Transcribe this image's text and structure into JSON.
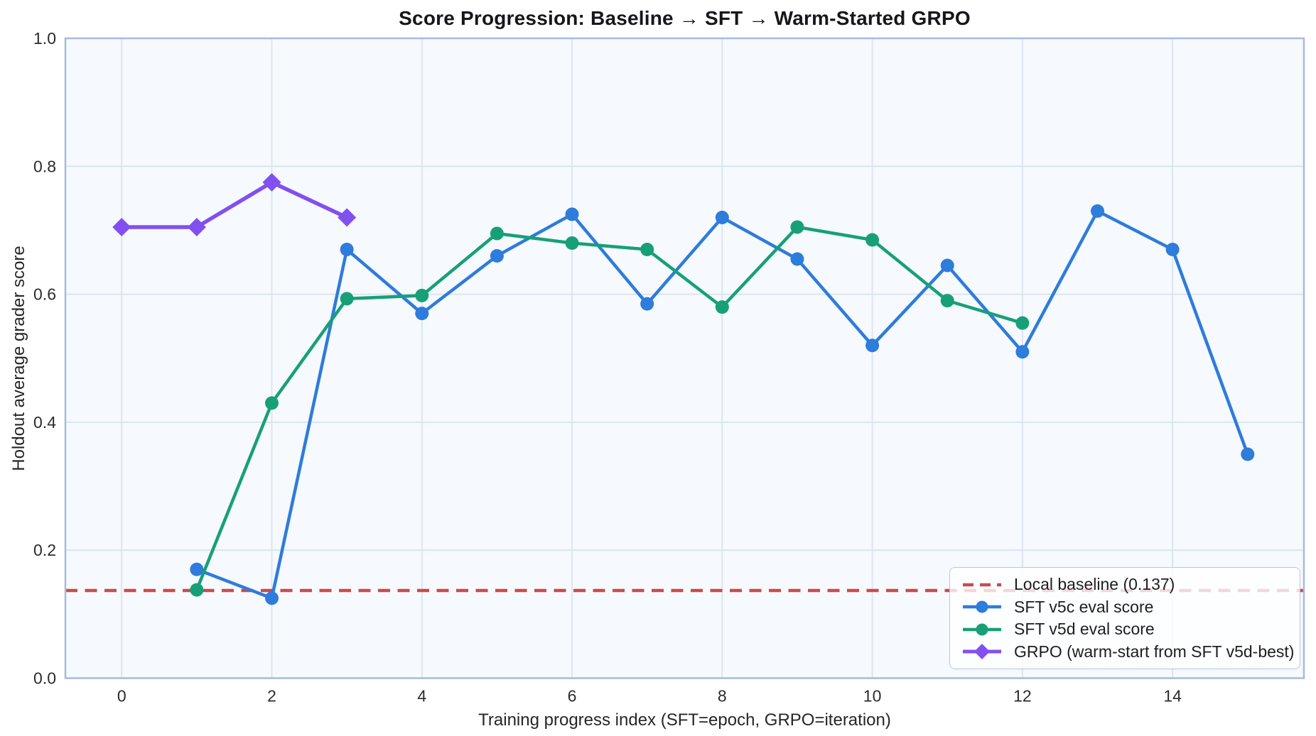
{
  "chart_data": {
    "type": "line",
    "title": "Score Progression: Baseline → SFT → Warm-Started GRPO",
    "xlabel": "Training progress index (SFT=epoch, GRPO=iteration)",
    "ylabel": "Holdout average grader score",
    "xlim": [
      -0.75,
      15.75
    ],
    "ylim": [
      0.0,
      1.0
    ],
    "x_ticks": [
      0,
      2,
      4,
      6,
      8,
      10,
      12,
      14
    ],
    "y_ticks": [
      "0.0",
      "0.2",
      "0.4",
      "0.6",
      "0.8",
      "1.0"
    ],
    "grid": true,
    "legend_position": "lower right",
    "colors": {
      "axes_background": "#f6f9fd",
      "gridline": "#d9e3f1",
      "spine": "#a8bbdc",
      "baseline_red": "#c94b4b",
      "sft_v5c_blue": "#2e7cdb",
      "sft_v5d_green": "#17a078",
      "grpo_purple": "#8250f0"
    },
    "baseline": {
      "label": "Local baseline (0.137)",
      "value": 0.137,
      "color": "#c94b4b",
      "style": "dashed"
    },
    "series": [
      {
        "name": "SFT v5c eval score",
        "color": "#2e7cdb",
        "marker": "circle",
        "x": [
          1,
          2,
          3,
          4,
          5,
          6,
          7,
          8,
          9,
          10,
          11,
          12,
          13,
          14,
          15
        ],
        "y": [
          0.17,
          0.125,
          0.67,
          0.57,
          0.66,
          0.725,
          0.585,
          0.72,
          0.655,
          0.52,
          0.645,
          0.51,
          0.73,
          0.67,
          0.35
        ]
      },
      {
        "name": "SFT v5d eval score",
        "color": "#17a078",
        "marker": "circle",
        "x": [
          1,
          2,
          3,
          4,
          5,
          6,
          7,
          8,
          9,
          10,
          11,
          12
        ],
        "y": [
          0.138,
          0.43,
          0.593,
          0.598,
          0.695,
          0.68,
          0.67,
          0.58,
          0.705,
          0.685,
          0.59,
          0.555
        ]
      },
      {
        "name": "GRPO (warm-start from SFT v5d-best)",
        "color": "#8250f0",
        "marker": "diamond",
        "x": [
          0,
          1,
          2,
          3
        ],
        "y": [
          0.705,
          0.705,
          0.775,
          0.72
        ]
      }
    ]
  }
}
